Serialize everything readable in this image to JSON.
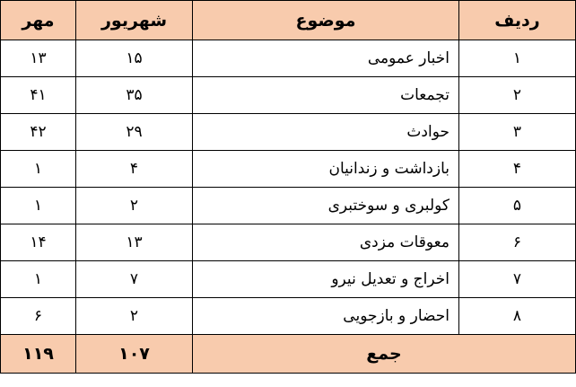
{
  "headers": {
    "radif": "ردیف",
    "subject": "موضوع",
    "shahrivar": "شهریور",
    "mehr": "مهر"
  },
  "rows": [
    {
      "radif": "۱",
      "subject": "اخبار عمومی",
      "shahrivar": "۱۵",
      "mehr": "۱۳"
    },
    {
      "radif": "۲",
      "subject": "تجمعات",
      "shahrivar": "۳۵",
      "mehr": "۴۱"
    },
    {
      "radif": "۳",
      "subject": "حوادث",
      "shahrivar": "۲۹",
      "mehr": "۴۲"
    },
    {
      "radif": "۴",
      "subject": "بازداشت و زندانیان",
      "shahrivar": "۴",
      "mehr": "۱"
    },
    {
      "radif": "۵",
      "subject": "کولبری و سوختبری",
      "shahrivar": "۲",
      "mehr": "۱"
    },
    {
      "radif": "۶",
      "subject": "معوقات مزدی",
      "shahrivar": "۱۳",
      "mehr": "۱۴"
    },
    {
      "radif": "۷",
      "subject": "اخراج و تعدیل نیرو",
      "shahrivar": "۷",
      "mehr": "۱"
    },
    {
      "radif": "۸",
      "subject": "احضار و بازجویی",
      "shahrivar": "۲",
      "mehr": "۶"
    }
  ],
  "total": {
    "label": "جمع",
    "shahrivar": "۱۰۷",
    "mehr": "۱۱۹"
  },
  "colors": {
    "header_bg": "#f8cbad"
  }
}
